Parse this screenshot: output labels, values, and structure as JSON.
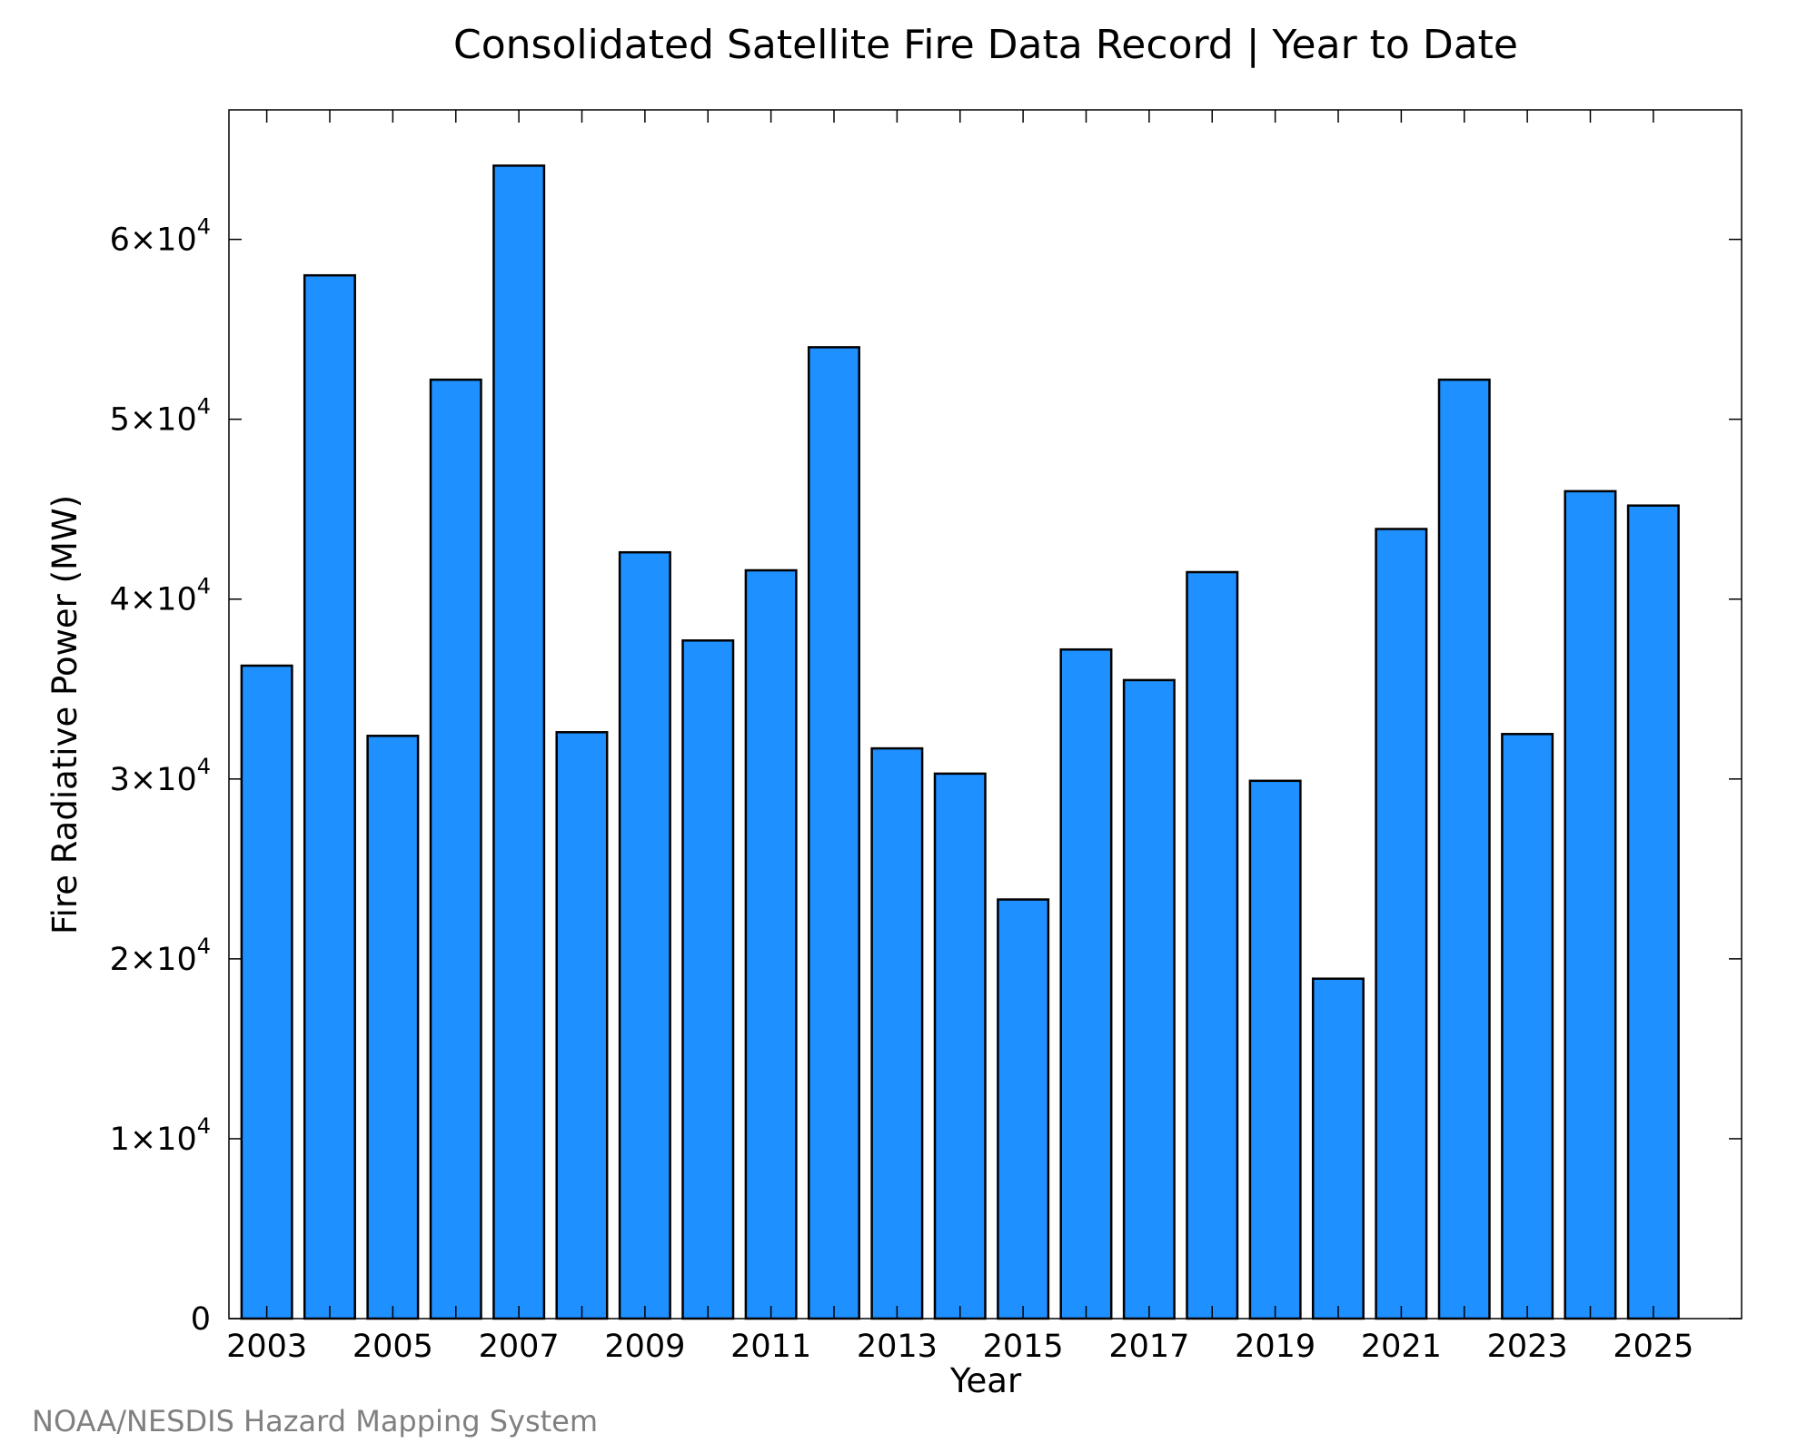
{
  "chart_data": {
    "type": "bar",
    "title": "Consolidated Satellite Fire Data Record | Year to Date",
    "xlabel": "Year",
    "ylabel": "Fire Radiative Power (MW)",
    "credit": "NOAA/NESDIS Hazard Mapping System",
    "categories": [
      "2003",
      "2004",
      "2005",
      "2006",
      "2007",
      "2008",
      "2009",
      "2010",
      "2011",
      "2012",
      "2013",
      "2014",
      "2015",
      "2016",
      "2017",
      "2018",
      "2019",
      "2020",
      "2021",
      "2022",
      "2023",
      "2024",
      "2025"
    ],
    "values": [
      36300,
      58000,
      32400,
      52200,
      64100,
      32600,
      42600,
      37700,
      41600,
      54000,
      31700,
      30300,
      23300,
      37200,
      35500,
      41500,
      29900,
      18900,
      43900,
      52200,
      32500,
      46000,
      45200
    ],
    "x_tick_labels": [
      "2003",
      "2005",
      "2007",
      "2009",
      "2011",
      "2013",
      "2015",
      "2017",
      "2019",
      "2021",
      "2023",
      "2025"
    ],
    "y_ticks": [
      0,
      10000,
      20000,
      30000,
      40000,
      50000,
      60000
    ],
    "y_tick_labels": [
      {
        "mantissa": "0",
        "exp": ""
      },
      {
        "mantissa": "1×10",
        "exp": "4"
      },
      {
        "mantissa": "2×10",
        "exp": "4"
      },
      {
        "mantissa": "3×10",
        "exp": "4"
      },
      {
        "mantissa": "4×10",
        "exp": "4"
      },
      {
        "mantissa": "5×10",
        "exp": "4"
      },
      {
        "mantissa": "6×10",
        "exp": "4"
      }
    ],
    "ylim": [
      0,
      67200
    ],
    "xlim": [
      2002.4,
      2026.4
    ],
    "bar_color": "#1e90ff",
    "edge_color": "#000000",
    "grid": false,
    "legend": "none"
  }
}
